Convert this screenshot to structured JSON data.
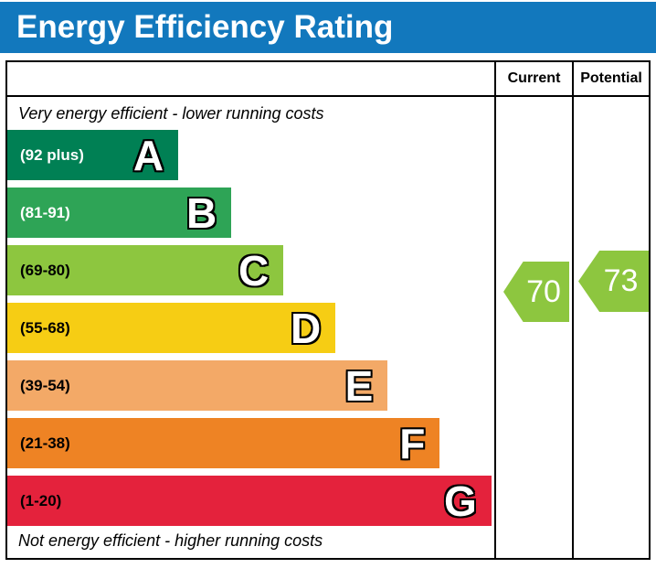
{
  "title": "Energy Efficiency Rating",
  "columns": {
    "current": "Current",
    "potential": "Potential"
  },
  "top_note": "Very energy efficient - lower running costs",
  "bottom_note": "Not energy efficient - higher running costs",
  "bands": [
    {
      "letter": "A",
      "range": "(92 plus)",
      "color": "#008054",
      "range_color": "#ffffff",
      "width_pct": 35.1
    },
    {
      "letter": "B",
      "range": "(81-91)",
      "color": "#2ea456",
      "range_color": "#ffffff",
      "width_pct": 46.0
    },
    {
      "letter": "C",
      "range": "(69-80)",
      "color": "#8dc63f",
      "range_color": "#000000",
      "width_pct": 56.7
    },
    {
      "letter": "D",
      "range": "(55-68)",
      "color": "#f6cd14",
      "range_color": "#000000",
      "width_pct": 67.4
    },
    {
      "letter": "E",
      "range": "(39-54)",
      "color": "#f3a967",
      "range_color": "#000000",
      "width_pct": 78.1
    },
    {
      "letter": "F",
      "range": "(21-38)",
      "color": "#ee8324",
      "range_color": "#000000",
      "width_pct": 88.8
    },
    {
      "letter": "G",
      "range": "(1-20)",
      "color": "#e4223c",
      "range_color": "#000000",
      "width_pct": 99.4
    }
  ],
  "current": {
    "value": "70",
    "color": "#8dc63f"
  },
  "potential": {
    "value": "73",
    "color": "#8dc63f"
  },
  "header_color": "#1278bd",
  "chart_data": {
    "type": "bar",
    "orientation": "horizontal",
    "title": "Energy Efficiency Rating",
    "categories": [
      "A",
      "B",
      "C",
      "D",
      "E",
      "F",
      "G"
    ],
    "category_ranges": [
      "92 plus",
      "81-91",
      "69-80",
      "55-68",
      "39-54",
      "21-38",
      "1-20"
    ],
    "colors": [
      "#008054",
      "#2ea456",
      "#8dc63f",
      "#f6cd14",
      "#f3a967",
      "#ee8324",
      "#e4223c"
    ],
    "scale_min": 1,
    "scale_max": 100,
    "markers": [
      {
        "name": "Current",
        "value": 70,
        "color": "#8dc63f"
      },
      {
        "name": "Potential",
        "value": 73,
        "color": "#8dc63f"
      }
    ],
    "annotations": [
      "Very energy efficient - lower running costs",
      "Not energy efficient - higher running costs"
    ]
  }
}
